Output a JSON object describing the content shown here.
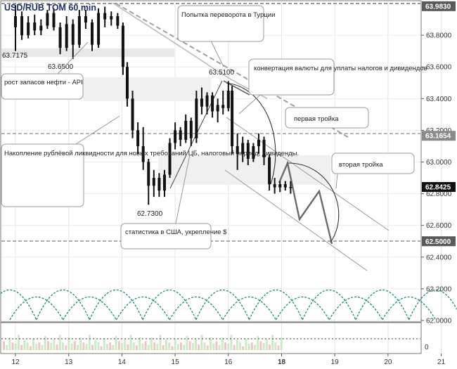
{
  "chart_data": {
    "type": "candlestick",
    "title": "USD/RUB TOM 60 min",
    "ylim": [
      62.0,
      64.0
    ],
    "y_ticks": [
      "63.8000",
      "63.6000",
      "63.4000",
      "63.2000",
      "63.0000",
      "62.8000",
      "62.6000",
      "62.4000",
      "62.2000",
      "62.0000"
    ],
    "x_ticks": [
      "12",
      "13",
      "14",
      "15",
      "16",
      "18",
      "19",
      "20",
      "21"
    ],
    "price_tags": [
      {
        "value": "63.9830",
        "color": "#5a5a5a"
      },
      {
        "value": "63.1654",
        "color": "#8a8a8a"
      },
      {
        "value": "62.8425",
        "color": "#111111"
      },
      {
        "value": "62.5000",
        "color": "#5a5a5a"
      }
    ],
    "point_labels": [
      "63.7175",
      "63.6500",
      "63.5100",
      "62.7300"
    ],
    "annotations": [
      "Попытка переворота в Турции",
      "рост запасов нефти - API",
      "конвертация валюты для уплаты налогов и дивидендов",
      "первая тройка",
      "вторая тройка",
      "Накопление рублёвой ликвидности для новых требований ЦБ, налоговый период, дивиденды.",
      "статистика в США, укрепление $"
    ],
    "volume_axis_label": "0",
    "candles": [
      {
        "t": 12.0,
        "o": 63.85,
        "h": 63.99,
        "l": 63.7,
        "c": 63.92
      },
      {
        "t": 12.12,
        "o": 63.92,
        "h": 63.95,
        "l": 63.77,
        "c": 63.8
      },
      {
        "t": 12.24,
        "o": 63.8,
        "h": 63.92,
        "l": 63.78,
        "c": 63.88
      },
      {
        "t": 12.36,
        "o": 63.88,
        "h": 63.93,
        "l": 63.8,
        "c": 63.83
      },
      {
        "t": 12.48,
        "o": 63.83,
        "h": 63.9,
        "l": 63.8,
        "c": 63.86
      },
      {
        "t": 12.6,
        "o": 63.86,
        "h": 63.96,
        "l": 63.84,
        "c": 63.94
      },
      {
        "t": 12.72,
        "o": 63.94,
        "h": 63.97,
        "l": 63.83,
        "c": 63.85
      },
      {
        "t": 12.84,
        "o": 63.85,
        "h": 63.88,
        "l": 63.68,
        "c": 63.72
      },
      {
        "t": 12.96,
        "o": 63.72,
        "h": 63.92,
        "l": 63.7,
        "c": 63.87
      },
      {
        "t": 13.08,
        "o": 63.87,
        "h": 63.9,
        "l": 63.65,
        "c": 63.74
      },
      {
        "t": 13.2,
        "o": 63.74,
        "h": 63.96,
        "l": 63.72,
        "c": 63.92
      },
      {
        "t": 13.32,
        "o": 63.92,
        "h": 63.96,
        "l": 63.84,
        "c": 63.88
      },
      {
        "t": 13.44,
        "o": 63.88,
        "h": 63.9,
        "l": 63.7,
        "c": 63.74
      },
      {
        "t": 13.56,
        "o": 63.74,
        "h": 63.97,
        "l": 63.72,
        "c": 63.94
      },
      {
        "t": 13.68,
        "o": 63.94,
        "h": 63.98,
        "l": 63.85,
        "c": 63.9
      },
      {
        "t": 13.8,
        "o": 63.9,
        "h": 63.95,
        "l": 63.86,
        "c": 63.92
      },
      {
        "t": 13.92,
        "o": 63.92,
        "h": 63.94,
        "l": 63.84,
        "c": 63.86
      },
      {
        "t": 14.02,
        "o": 63.86,
        "h": 63.88,
        "l": 63.55,
        "c": 63.6
      },
      {
        "t": 14.1,
        "o": 63.6,
        "h": 63.63,
        "l": 63.35,
        "c": 63.4
      },
      {
        "t": 14.2,
        "o": 63.4,
        "h": 63.45,
        "l": 63.15,
        "c": 63.2
      },
      {
        "t": 14.3,
        "o": 63.2,
        "h": 63.25,
        "l": 63.05,
        "c": 63.1
      },
      {
        "t": 14.4,
        "o": 63.1,
        "h": 63.22,
        "l": 62.95,
        "c": 63.0
      },
      {
        "t": 14.5,
        "o": 63.0,
        "h": 63.02,
        "l": 62.73,
        "c": 62.85
      },
      {
        "t": 14.6,
        "o": 62.85,
        "h": 62.95,
        "l": 62.78,
        "c": 62.9
      },
      {
        "t": 14.7,
        "o": 62.9,
        "h": 62.93,
        "l": 62.78,
        "c": 62.82
      },
      {
        "t": 14.8,
        "o": 62.82,
        "h": 62.95,
        "l": 62.78,
        "c": 62.92
      },
      {
        "t": 14.9,
        "o": 62.92,
        "h": 63.15,
        "l": 62.9,
        "c": 63.12
      },
      {
        "t": 15.0,
        "o": 63.12,
        "h": 63.25,
        "l": 63.08,
        "c": 63.2
      },
      {
        "t": 15.1,
        "o": 63.2,
        "h": 63.22,
        "l": 63.1,
        "c": 63.14
      },
      {
        "t": 15.2,
        "o": 63.14,
        "h": 63.3,
        "l": 63.12,
        "c": 63.26
      },
      {
        "t": 15.3,
        "o": 63.26,
        "h": 63.28,
        "l": 63.1,
        "c": 63.15
      },
      {
        "t": 15.4,
        "o": 63.15,
        "h": 63.45,
        "l": 63.12,
        "c": 63.4
      },
      {
        "t": 15.5,
        "o": 63.4,
        "h": 63.47,
        "l": 63.3,
        "c": 63.35
      },
      {
        "t": 15.6,
        "o": 63.35,
        "h": 63.44,
        "l": 63.3,
        "c": 63.42
      },
      {
        "t": 15.7,
        "o": 63.42,
        "h": 63.44,
        "l": 63.28,
        "c": 63.32
      },
      {
        "t": 15.8,
        "o": 63.32,
        "h": 63.4,
        "l": 63.25,
        "c": 63.36
      },
      {
        "t": 15.9,
        "o": 63.36,
        "h": 63.45,
        "l": 63.3,
        "c": 63.34
      },
      {
        "t": 16.0,
        "o": 63.34,
        "h": 63.51,
        "l": 63.32,
        "c": 63.45
      },
      {
        "t": 16.07,
        "o": 63.45,
        "h": 63.48,
        "l": 63.05,
        "c": 63.1
      },
      {
        "t": 16.17,
        "o": 63.1,
        "h": 63.18,
        "l": 62.95,
        "c": 63.05
      },
      {
        "t": 16.27,
        "o": 63.05,
        "h": 63.16,
        "l": 63.0,
        "c": 63.12
      },
      {
        "t": 16.37,
        "o": 63.12,
        "h": 63.14,
        "l": 62.98,
        "c": 63.02
      },
      {
        "t": 16.47,
        "o": 63.02,
        "h": 63.12,
        "l": 63.0,
        "c": 63.1
      },
      {
        "t": 16.57,
        "o": 63.1,
        "h": 63.18,
        "l": 63.05,
        "c": 63.14
      },
      {
        "t": 16.67,
        "o": 63.14,
        "h": 63.16,
        "l": 62.98,
        "c": 63.03
      },
      {
        "t": 16.77,
        "o": 63.03,
        "h": 63.05,
        "l": 62.82,
        "c": 62.86
      },
      {
        "t": 16.87,
        "o": 62.86,
        "h": 62.9,
        "l": 62.8,
        "c": 62.84
      },
      {
        "t": 16.97,
        "o": 62.84,
        "h": 62.88,
        "l": 62.81,
        "c": 62.86
      },
      {
        "t": 17.07,
        "o": 62.86,
        "h": 62.88,
        "l": 62.82,
        "c": 62.84
      },
      {
        "t": 17.17,
        "o": 62.84,
        "h": 62.88,
        "l": 62.8,
        "c": 62.8425
      }
    ]
  }
}
